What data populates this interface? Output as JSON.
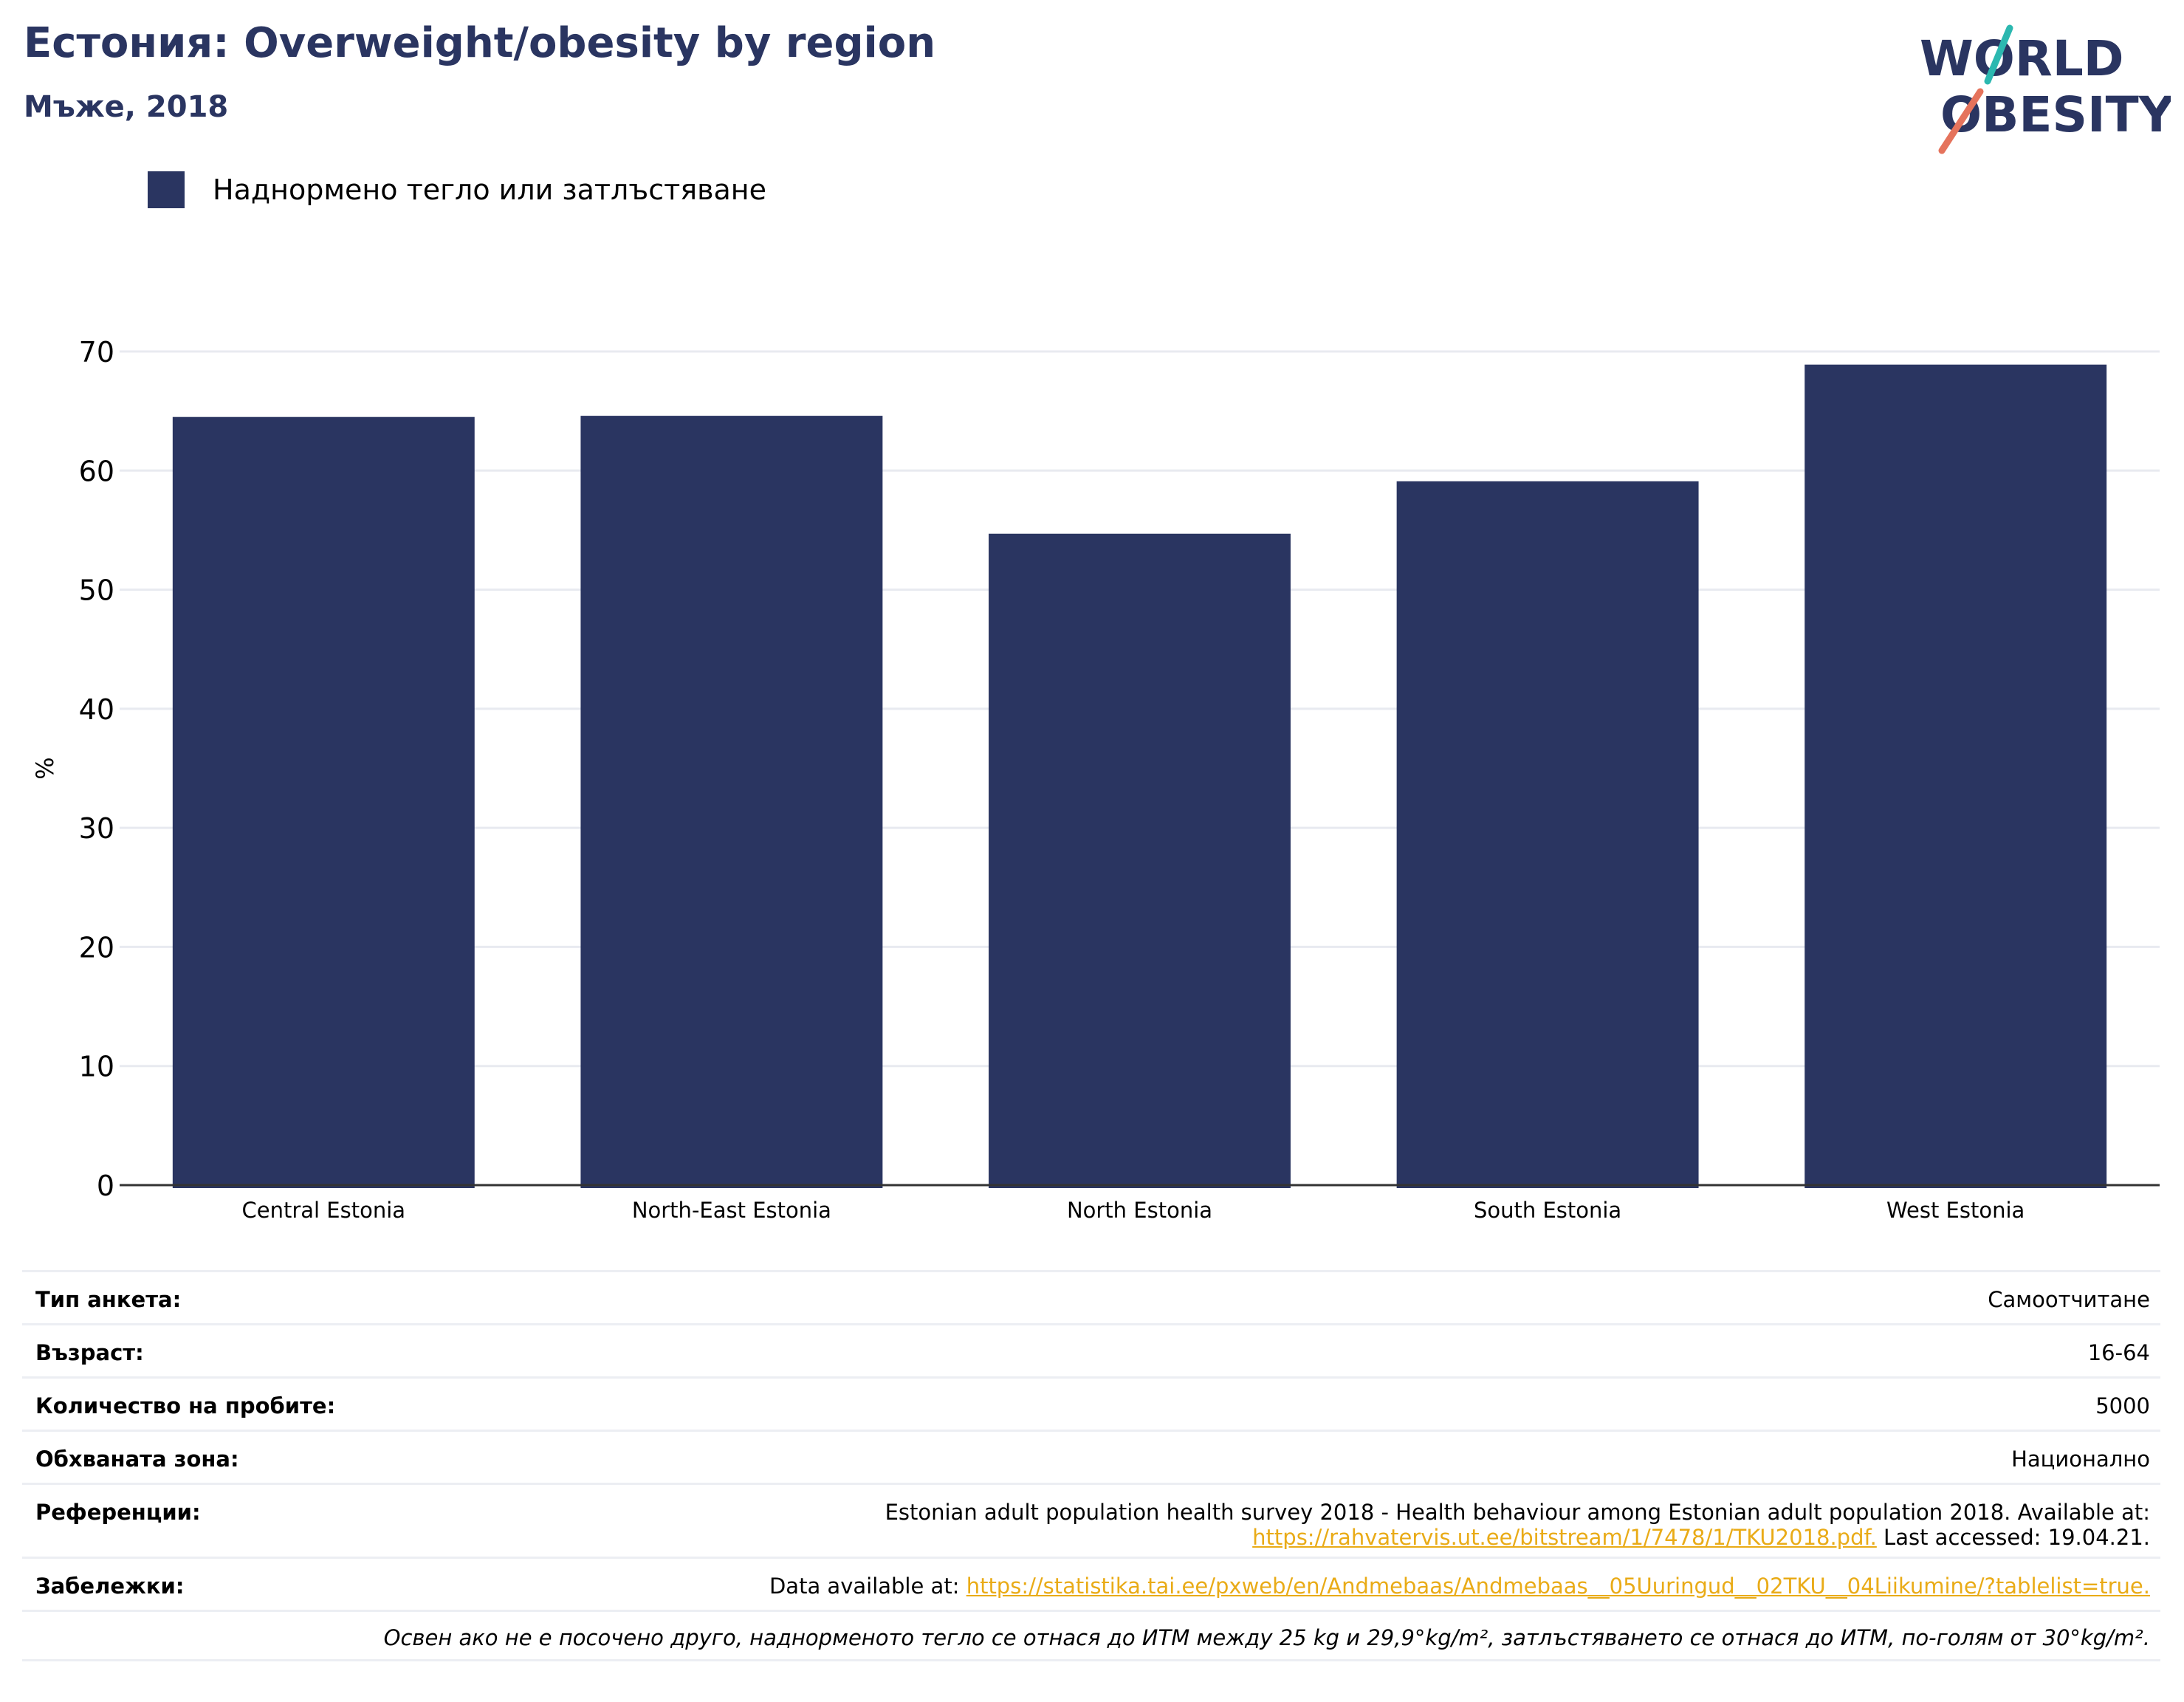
{
  "header": {
    "title": "Естония: Overweight/obesity by region",
    "subtitle": "Мъже, 2018"
  },
  "logo": {
    "line1": "WORLD",
    "line2": "OBESITY"
  },
  "legend": {
    "label": "Наднормено тегло или затлъстяване"
  },
  "colors": {
    "bar": "#2a3561",
    "grid": "#e8eaf0",
    "axis": "#333333",
    "link": "#e9ab17",
    "title": "#2a3561"
  },
  "chart_data": {
    "type": "bar",
    "categories": [
      "Central Estonia",
      "North-East Estonia",
      "North Estonia",
      "South Estonia",
      "West Estonia"
    ],
    "series": [
      {
        "name": "Наднормено тегло или затлъстяване",
        "values": [
          64.5,
          64.6,
          54.7,
          59.1,
          68.9
        ]
      }
    ],
    "ylabel": "%",
    "ylim": [
      0,
      70
    ],
    "yticks": [
      "0",
      "10",
      "20",
      "30",
      "40",
      "50",
      "60",
      "70"
    ],
    "grid": true,
    "legend_position": "top-left"
  },
  "info": {
    "survey_type_label": "Тип анкета:",
    "survey_type_value": "Самоотчитане",
    "age_label": "Възраст:",
    "age_value": "16-64",
    "sample_label": "Количество на пробите:",
    "sample_value": "5000",
    "coverage_label": "Обхваната зона:",
    "coverage_value": "Национално",
    "references_label": "Референции:",
    "references_text": "Estonian adult population health survey 2018 - Health behaviour among Estonian adult population 2018. Available at:",
    "references_link": "https://rahvatervis.ut.ee/bitstream/1/7478/1/TKU2018.pdf.",
    "references_accessed": " Last accessed: 19.04.21.",
    "notes_label": "Забележки:",
    "notes_text": "Data available at: ",
    "notes_link": "https://statistika.tai.ee/pxweb/en/Andmebaas/Andmebaas__05Uuringud__02TKU__04Liikumine/?tablelist=true.",
    "footnote": "Освен ако не е посочено друго, наднорменото тегло се отнася до ИТМ между 25 kg и 29,9°kg/m², затлъстяването се отнася до ИТМ, по-голям от 30°kg/m²."
  }
}
